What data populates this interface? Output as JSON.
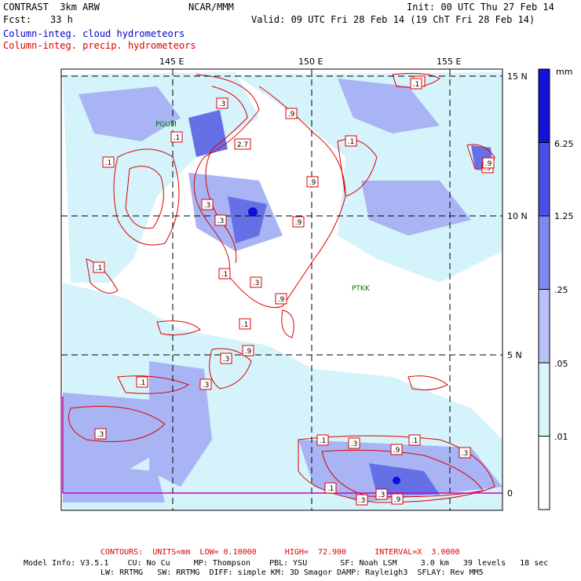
{
  "header": {
    "model": "CONTRAST  3km ARW",
    "org": "NCAR/MMM",
    "init": "Init: 00 UTC Thu 27 Feb 14",
    "fcst_label": "Fcst:",
    "fcst_value": "33 h",
    "valid": "Valid: 09 UTC Fri 28 Feb 14 (19 ChT Fri 28 Feb 14)",
    "field1": "Column-integ. cloud hydrometeors",
    "field2": "Column-integ. precip. hydrometeors"
  },
  "map": {
    "lon_labels": [
      "145 E",
      "150 E",
      "155 E"
    ],
    "lat_labels": [
      "15 N",
      "10 N",
      "5 N",
      "0"
    ],
    "stations": [
      "PGUM",
      "PTKK"
    ],
    "contour_labels": [
      ".3",
      ".9",
      "2.7",
      ".1",
      ".1",
      ".3",
      ".3",
      ".9",
      ".9",
      ".1",
      ".3",
      ".9",
      ".1",
      ".1",
      ".9",
      ".3",
      ".3",
      ".1",
      ".9",
      ".1",
      ".3",
      ".3",
      ".1",
      ".3",
      ".9",
      ".1",
      ".3",
      ".1",
      ".1",
      ".9",
      ".3",
      ".9",
      ".1"
    ],
    "colors": {
      "frame": "#000000",
      "grid": "#000000",
      "contour": "#dd0000",
      "cloud_light": "#d4f3fb",
      "cloud_mid": "#a9b4f5",
      "cloud_dark": "#6670e6",
      "cloud_darkest": "#1010d8"
    }
  },
  "legend": {
    "unit": "mm",
    "ticks": [
      "6.25",
      "1.25",
      ".25",
      ".05",
      ".01"
    ],
    "colors": [
      "#1212d8",
      "#4a50e6",
      "#8088ef",
      "#b9c2f8",
      "#d7f6fc",
      "#ffffff"
    ]
  },
  "footer": {
    "contours": "CONTOURS:  UNITS=mm  LOW= 0.10000      HIGH=  72.900      INTERVAL=X  3.0000",
    "model_info": "Model Info: V3.5.1    CU: No Cu     MP: Thompson    PBL: YSU       SF: Noah LSM     3.0 km   39 levels   18 sec",
    "model_info2": "LW: RRTMG   SW: RRTMG  DIFF: simple KM: 3D Smagor DAMP: Rayleigh3  SFLAY: Rev MM5"
  }
}
